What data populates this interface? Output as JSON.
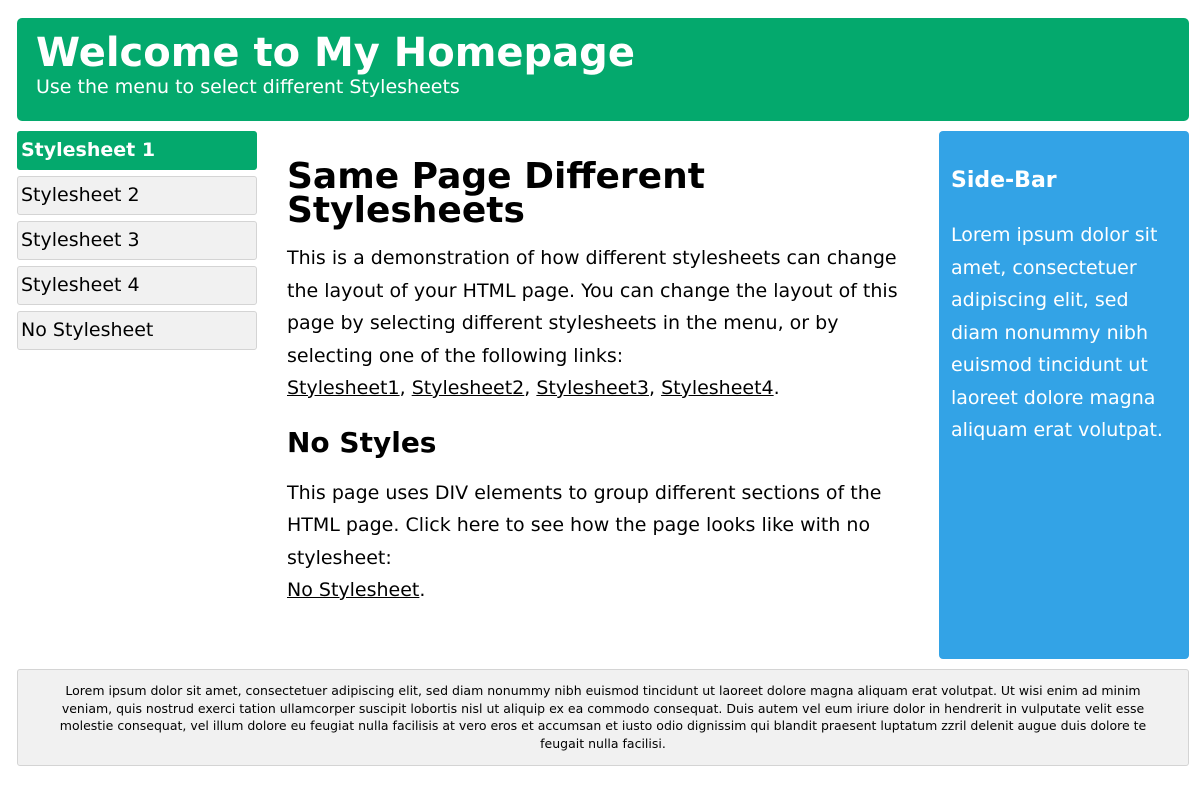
{
  "header": {
    "title": "Welcome to My Homepage",
    "subtitle": "Use the menu to select different Stylesheets"
  },
  "menu": {
    "items": [
      {
        "label": "Stylesheet 1",
        "active": true
      },
      {
        "label": "Stylesheet 2",
        "active": false
      },
      {
        "label": "Stylesheet 3",
        "active": false
      },
      {
        "label": "Stylesheet 4",
        "active": false
      },
      {
        "label": "No Stylesheet",
        "active": false
      }
    ]
  },
  "main": {
    "heading": "Same Page Different Stylesheets",
    "intro_text": "This is a demonstration of how different stylesheets can change the layout of your HTML page. You can change the layout of this page by selecting different stylesheets in the menu, or by selecting one of the following links:",
    "links": [
      "Stylesheet1",
      "Stylesheet2",
      "Stylesheet3",
      "Stylesheet4"
    ],
    "link_separator": ", ",
    "link_end": ".",
    "subheading": "No Styles",
    "nostyle_text": "This page uses DIV elements to group different sections of the HTML page. Click here to see how the page looks like with no stylesheet:",
    "nostyle_link": "No Stylesheet",
    "nostyle_end": "."
  },
  "sidebar": {
    "title": "Side-Bar",
    "text": "Lorem ipsum dolor sit amet, consectetuer adipiscing elit, sed diam nonummy nibh euismod tincidunt ut laoreet dolore magna aliquam erat volutpat."
  },
  "footer": {
    "text": "Lorem ipsum dolor sit amet, consectetuer adipiscing elit, sed diam nonummy nibh euismod tincidunt ut laoreet dolore magna aliquam erat volutpat. Ut wisi enim ad minim veniam, quis nostrud exerci tation ullamcorper suscipit lobortis nisl ut aliquip ex ea commodo consequat. Duis autem vel eum iriure dolor in hendrerit in vulputate velit esse molestie consequat, vel illum dolore eu feugiat nulla facilisis at vero eros et accumsan et iusto odio dignissim qui blandit praesent luptatum zzril delenit augue duis dolore te feugait nulla facilisi."
  },
  "colors": {
    "header_bg": "#04a96d",
    "menu_active_bg": "#04a96d",
    "menu_bg": "#f1f1f1",
    "sidebar_bg": "#33a3e6",
    "footer_bg": "#f1f1f1"
  }
}
